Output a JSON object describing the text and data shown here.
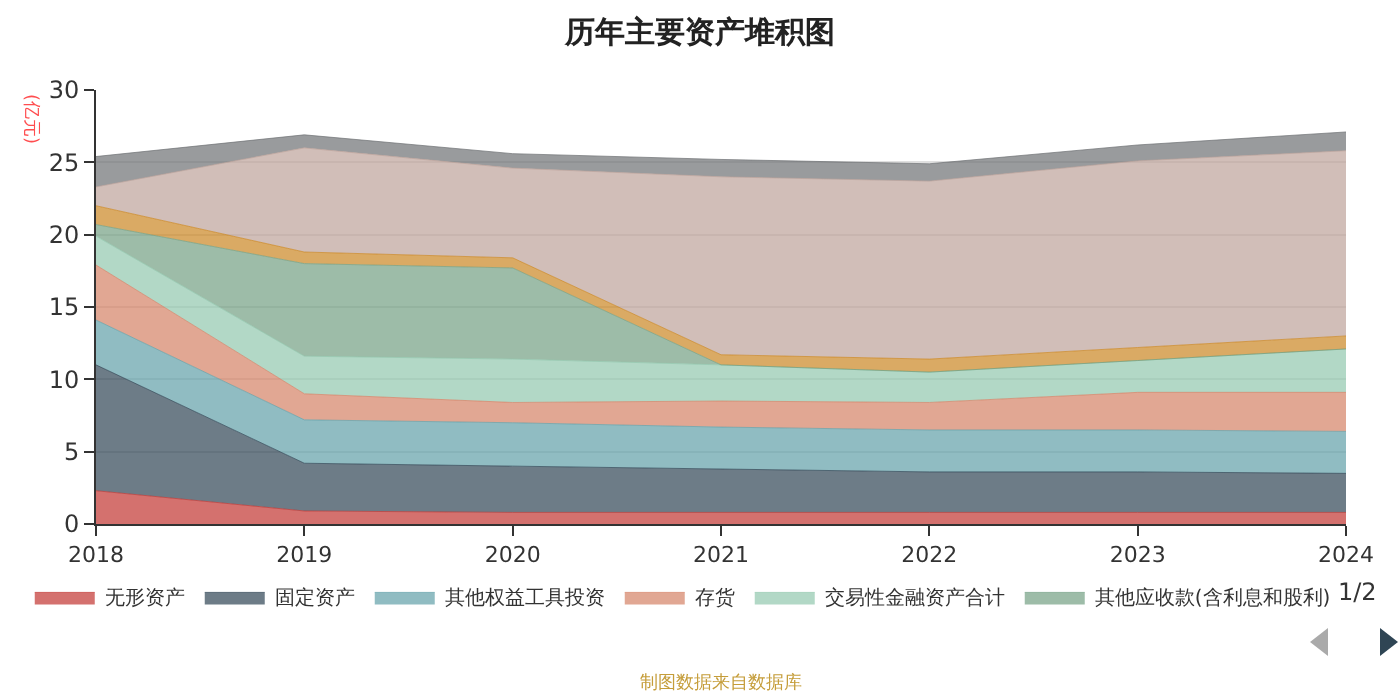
{
  "chart_data": {
    "type": "area",
    "title": "历年主要资产堆积图",
    "ylabel": "(亿元)",
    "stacked": true,
    "grid": "y",
    "legend": "bottom",
    "marker": "none",
    "categories": [
      "2018",
      "2019",
      "2020",
      "2021",
      "2022",
      "2023",
      "2024"
    ],
    "ylim": [
      0,
      30
    ],
    "yticks": [
      0,
      5,
      10,
      15,
      20,
      25,
      30
    ],
    "series": [
      {
        "name": "无形资产",
        "color": "#c23531",
        "values": [
          2.3,
          0.9,
          0.8,
          0.8,
          0.8,
          0.8,
          0.8
        ]
      },
      {
        "name": "固定资产",
        "color": "#2f4554",
        "values": [
          8.7,
          3.3,
          3.2,
          3.0,
          2.8,
          2.8,
          2.7
        ]
      },
      {
        "name": "其他权益工具投资",
        "color": "#61a0a8",
        "values": [
          3.1,
          3.0,
          3.0,
          2.9,
          2.9,
          2.9,
          2.9
        ]
      },
      {
        "name": "存货",
        "color": "#d48265",
        "values": [
          3.8,
          1.8,
          1.4,
          1.8,
          1.9,
          2.6,
          2.7
        ]
      },
      {
        "name": "交易性金融资产合计",
        "color": "#91c7ae",
        "values": [
          2.0,
          2.6,
          3.0,
          2.5,
          2.1,
          2.2,
          3.0
        ]
      },
      {
        "name": "其他应收款(含利息和股利)",
        "color": "#749f83",
        "values": [
          0.8,
          6.4,
          6.3,
          0,
          0,
          0,
          0
        ]
      },
      {
        "color": "#ca8622",
        "values": [
          1.3,
          0.8,
          0.7,
          0.7,
          0.9,
          0.9,
          0.9
        ]
      },
      {
        "color": "#bda29a",
        "values": [
          1.3,
          7.2,
          6.2,
          12.3,
          12.3,
          12.9,
          12.8
        ]
      },
      {
        "color": "#6e7074",
        "values": [
          2.1,
          0.9,
          1.0,
          1.2,
          1.2,
          1.1,
          1.3
        ]
      }
    ],
    "annotations": [
      "1/2",
      "制图数据来自数据库"
    ]
  }
}
